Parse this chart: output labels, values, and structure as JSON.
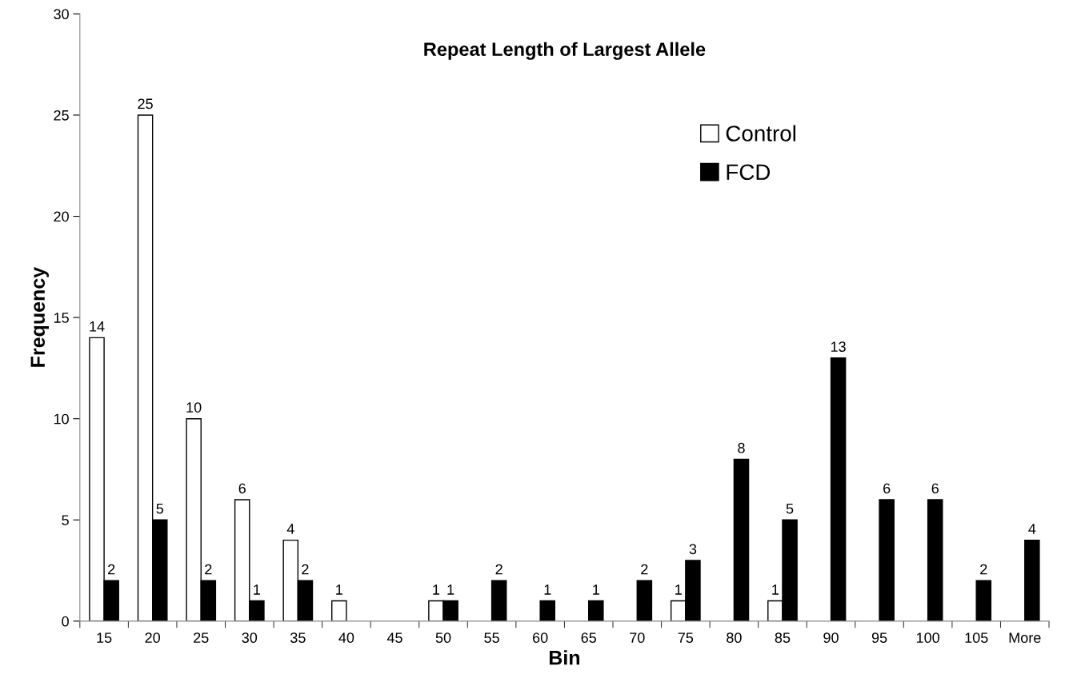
{
  "chart_data": {
    "type": "bar",
    "title": "Repeat Length of Largest Allele",
    "xlabel": "Bin",
    "ylabel": "Frequency",
    "categories": [
      "15",
      "20",
      "25",
      "30",
      "35",
      "40",
      "45",
      "50",
      "55",
      "60",
      "65",
      "70",
      "75",
      "80",
      "85",
      "90",
      "95",
      "100",
      "105",
      "More"
    ],
    "series": [
      {
        "name": "Control",
        "color": "#ffffff",
        "values": [
          14,
          25,
          10,
          6,
          4,
          1,
          0,
          1,
          0,
          0,
          0,
          0,
          1,
          0,
          1,
          0,
          0,
          0,
          0,
          0
        ],
        "value_labels": [
          "14",
          "25",
          "10",
          "6",
          "4",
          "1",
          null,
          "1",
          null,
          null,
          null,
          null,
          "1",
          null,
          "1",
          null,
          null,
          null,
          null,
          null
        ]
      },
      {
        "name": "FCD",
        "color": "#000000",
        "values": [
          2,
          5,
          2,
          1,
          2,
          0,
          0,
          1,
          2,
          1,
          1,
          2,
          3,
          8,
          5,
          13,
          6,
          6,
          2,
          4
        ],
        "value_labels": [
          "2",
          "5",
          "2",
          "1",
          "2",
          null,
          null,
          "1",
          "2",
          "1",
          "1",
          "2",
          "3",
          "8",
          "5",
          "13",
          "6",
          "6",
          "2",
          "4"
        ]
      }
    ],
    "ylim": [
      0,
      30
    ],
    "yticks": [
      0,
      5,
      10,
      15,
      20,
      25,
      30
    ],
    "grid": false,
    "legend": "top right"
  }
}
